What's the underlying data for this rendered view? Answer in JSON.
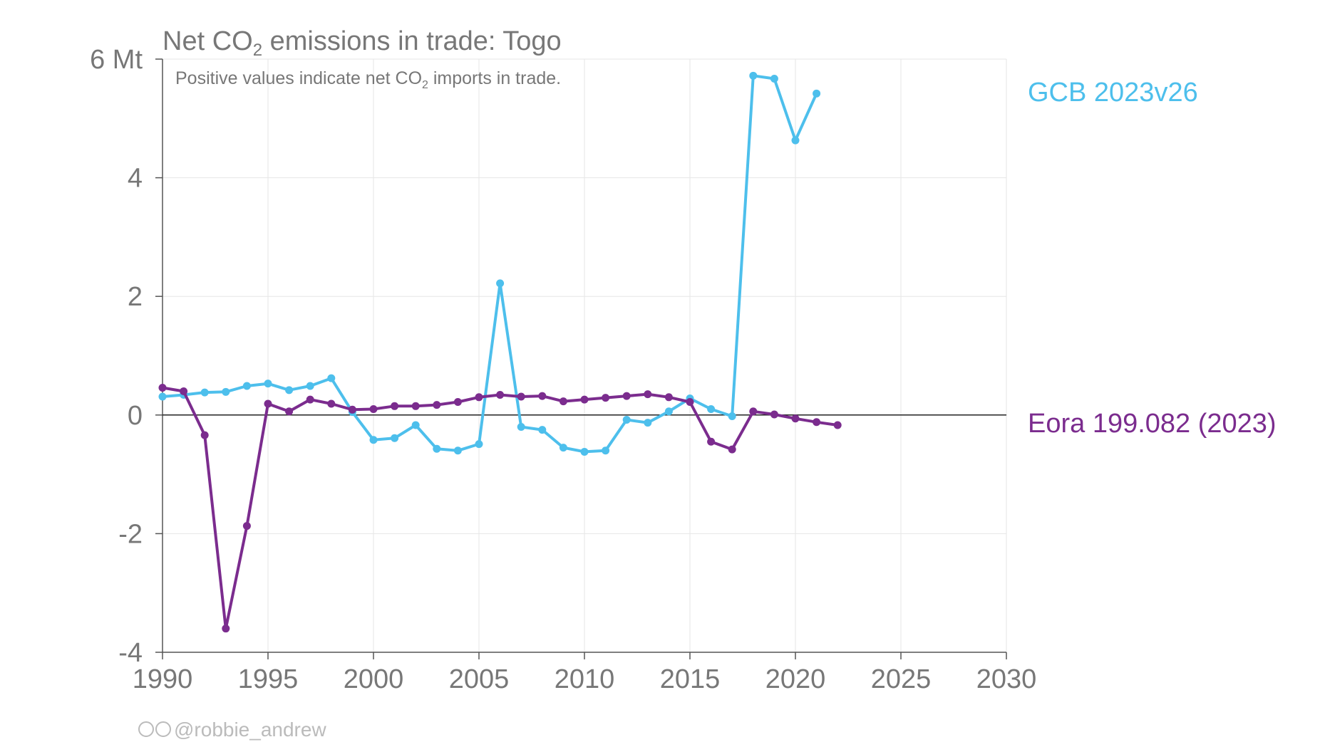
{
  "chart_data": {
    "type": "line",
    "title_pre": "Net CO",
    "title_sub": "2",
    "title_post": " emissions in trade: Togo",
    "subtitle_pre": "Positive values indicate net CO",
    "subtitle_sub": "2",
    "subtitle_post": " imports in trade.",
    "y_unit_label": "6 Mt",
    "xlim": [
      1990,
      2030
    ],
    "ylim": [
      -4,
      6
    ],
    "x_ticks": [
      "1990",
      "1995",
      "2000",
      "2005",
      "2010",
      "2015",
      "2020",
      "2025",
      "2030"
    ],
    "y_ticks": [
      {
        "value": 6,
        "label": "6 Mt"
      },
      {
        "value": 4,
        "label": "4"
      },
      {
        "value": 2,
        "label": "2"
      },
      {
        "value": 0,
        "label": "0"
      },
      {
        "value": -2,
        "label": "-2"
      },
      {
        "value": -4,
        "label": "-4"
      }
    ],
    "grid": true,
    "series": [
      {
        "name": "GCB 2023v26",
        "color": "#4dbfec",
        "x": [
          1990,
          1991,
          1992,
          1993,
          1994,
          1995,
          1996,
          1997,
          1998,
          1999,
          2000,
          2001,
          2002,
          2003,
          2004,
          2005,
          2006,
          2007,
          2008,
          2009,
          2010,
          2011,
          2012,
          2013,
          2014,
          2015,
          2016,
          2017,
          2018,
          2019,
          2020,
          2021
        ],
        "values": [
          0.31,
          0.34,
          0.38,
          0.39,
          0.49,
          0.53,
          0.42,
          0.49,
          0.62,
          0.05,
          -0.42,
          -0.39,
          -0.17,
          -0.57,
          -0.6,
          -0.49,
          2.22,
          -0.2,
          -0.25,
          -0.55,
          -0.62,
          -0.6,
          -0.08,
          -0.13,
          0.06,
          0.28,
          0.1,
          -0.02,
          5.72,
          5.67,
          4.63,
          5.42
        ]
      },
      {
        "name": "Eora 199.082 (2023)",
        "color": "#7b2c8e",
        "x": [
          1990,
          1991,
          1992,
          1993,
          1994,
          1995,
          1996,
          1997,
          1998,
          1999,
          2000,
          2001,
          2002,
          2003,
          2004,
          2005,
          2006,
          2007,
          2008,
          2009,
          2010,
          2011,
          2012,
          2013,
          2014,
          2015,
          2016,
          2017,
          2018,
          2019,
          2020,
          2021,
          2022
        ],
        "values": [
          0.46,
          0.4,
          -0.34,
          -3.6,
          -1.87,
          0.19,
          0.06,
          0.26,
          0.19,
          0.09,
          0.1,
          0.15,
          0.15,
          0.17,
          0.22,
          0.3,
          0.34,
          0.31,
          0.32,
          0.23,
          0.26,
          0.29,
          0.32,
          0.35,
          0.3,
          0.22,
          -0.45,
          -0.58,
          0.06,
          0.01,
          -0.06,
          -0.12,
          -0.17
        ]
      }
    ],
    "credit": "@robbie_andrew"
  }
}
